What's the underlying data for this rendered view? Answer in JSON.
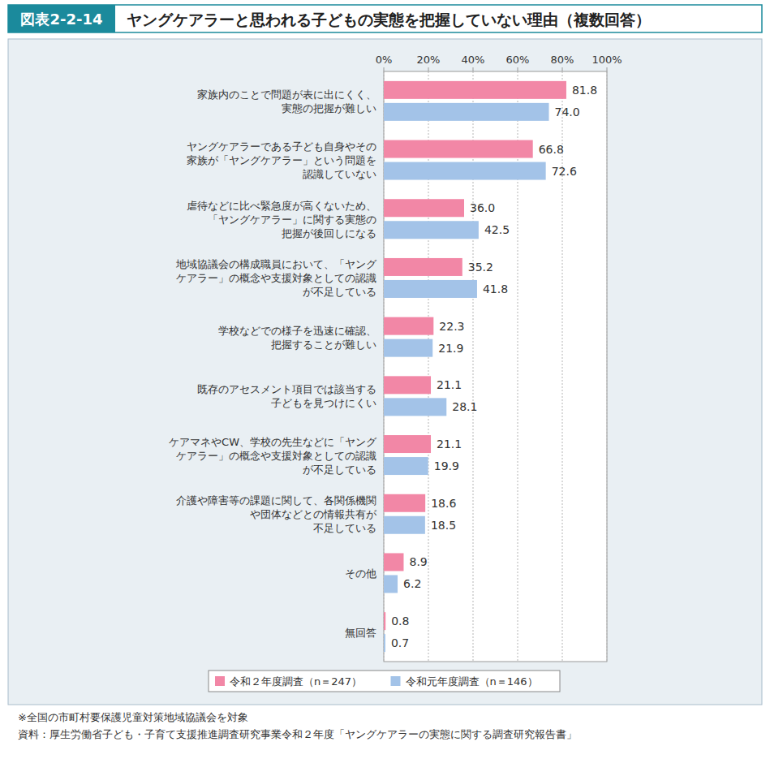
{
  "chart_data": {
    "type": "bar",
    "figure_label": "図表2-2-14",
    "title": "ヤングケアラーと思われる子どもの実態を把握していない理由（複数回答）",
    "orientation": "horizontal",
    "grid": true,
    "data_labels": true,
    "legend": "bottom",
    "categories": [
      "家族内のことで問題が表に出にくく、\n実態の把握が難しい",
      "ヤングケアラーである子ども自身やその\n家族が「ヤングケアラー」という問題を\n認識していない",
      "虐待などに比べ緊急度が高くないため、\n「ヤングケアラー」に関する実態の\n把握が後回しになる",
      "地域協議会の構成職員において、「ヤング\nケアラー」の概念や支援対象としての認識\nが不足している",
      "学校などでの様子を迅速に確認、\n把握することが難しい",
      "既存のアセスメント項目では該当する\n子どもを見つけにくい",
      "ケアマネやCW、学校の先生などに「ヤング\nケアラー」の概念や支援対象としての認識\nが不足している",
      "介護や障害等の課題に関して、各関係機関\nや団体などとの情報共有が\n不足している",
      "その他",
      "無回答"
    ],
    "series": [
      {
        "name": "令和２年度調査（n＝247）",
        "color": "#f287a6",
        "values": [
          81.8,
          66.8,
          36.0,
          35.2,
          22.3,
          21.1,
          21.1,
          18.6,
          8.9,
          0.8
        ],
        "value_labels": [
          "81.8",
          "66.8",
          "36.0",
          "35.2",
          "22.3",
          "21.1",
          "21.1",
          "18.6",
          "8.9",
          "0.8"
        ]
      },
      {
        "name": "令和元年度調査（n＝146）",
        "color": "#a3c3e8",
        "values": [
          74.0,
          72.6,
          42.5,
          41.8,
          21.9,
          28.1,
          19.9,
          18.5,
          6.2,
          0.7
        ],
        "value_labels": [
          "74.0",
          "72.6",
          "42.5",
          "41.8",
          "21.9",
          "28.1",
          "19.9",
          "18.5",
          "6.2",
          "0.7"
        ]
      }
    ],
    "xlim": [
      0,
      100
    ],
    "xticks": [
      {
        "value": 0,
        "label": "0%"
      },
      {
        "value": 20,
        "label": "20%"
      },
      {
        "value": 40,
        "label": "40%"
      },
      {
        "value": 60,
        "label": "60%"
      },
      {
        "value": 80,
        "label": "80%"
      },
      {
        "value": 100,
        "label": "100%"
      }
    ],
    "notes": [
      "※全国の市町村要保護児童対策地域協議会を対象",
      "資料：厚生労働省子ども・子育て支援推進調査研究事業令和２年度「ヤングケアラーの実態に関する調査研究報告書」"
    ]
  }
}
